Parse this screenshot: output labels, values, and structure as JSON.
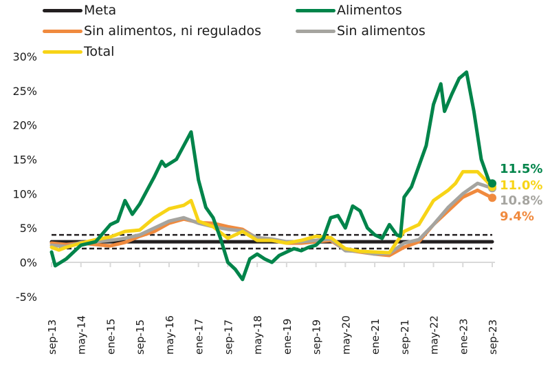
{
  "chart_data": {
    "type": "line",
    "title": "",
    "xlabel": "",
    "ylabel": "",
    "ylim": [
      -5,
      30
    ],
    "yticks": [
      "-5%",
      "0%",
      "5%",
      "10%",
      "15%",
      "20%",
      "25%",
      "30%"
    ],
    "ytick_values": [
      -5,
      0,
      5,
      10,
      15,
      20,
      25,
      30
    ],
    "xticks": [
      "sep-13",
      "may-14",
      "ene-15",
      "sep-15",
      "may-16",
      "ene-17",
      "sep-17",
      "may-18",
      "ene-19",
      "sep-19",
      "may-20",
      "ene-21",
      "sep-21",
      "may-22",
      "ene-23",
      "sep-23"
    ],
    "xtick_months": [
      0,
      8,
      16,
      24,
      32,
      40,
      48,
      56,
      64,
      72,
      80,
      88,
      96,
      104,
      112,
      120
    ],
    "x_unit": "months since sep-13",
    "meta": {
      "target": 3,
      "band_low": 2,
      "band_high": 4
    },
    "legend": [
      {
        "name": "Meta",
        "color": "#231f20"
      },
      {
        "name": "Alimentos",
        "color": "#00844a"
      },
      {
        "name": "Sin alimentos, ni regulados",
        "color": "#f08a3e"
      },
      {
        "name": "Sin alimentos",
        "color": "#a5a49f"
      },
      {
        "name": "Total",
        "color": "#f7d417"
      }
    ],
    "series": [
      {
        "name": "Alimentos",
        "color": "#00844a",
        "x": [
          0,
          1,
          4,
          8,
          12,
          16,
          18,
          20,
          22,
          24,
          26,
          28,
          30,
          31,
          34,
          36,
          38,
          40,
          42,
          44,
          46,
          48,
          50,
          52,
          54,
          56,
          58,
          60,
          62,
          64,
          66,
          68,
          70,
          72,
          74,
          76,
          78,
          80,
          82,
          84,
          86,
          88,
          90,
          92,
          94,
          95,
          96,
          98,
          100,
          102,
          104,
          106,
          107,
          109,
          111,
          113,
          115,
          117,
          119,
          120
        ],
        "y": [
          1.5,
          -0.5,
          0.5,
          2.5,
          3,
          5.5,
          6,
          9,
          7,
          8.5,
          10.5,
          12.5,
          14.7,
          14,
          15,
          17,
          19,
          12,
          8,
          6.5,
          3.5,
          0,
          -1,
          -2.5,
          0.5,
          1.2,
          0.5,
          0,
          1,
          1.5,
          2,
          1.7,
          2.2,
          2.5,
          3.5,
          6.5,
          6.8,
          5,
          8.2,
          7.5,
          5,
          4,
          3.5,
          5.5,
          4,
          3.8,
          9.5,
          11,
          14,
          17,
          23,
          26,
          22,
          24.5,
          26.8,
          27.7,
          22,
          15,
          12,
          11.5
        ]
      },
      {
        "name": "Sin alimentos, ni regulados",
        "color": "#f08a3e",
        "x": [
          0,
          4,
          8,
          12,
          16,
          20,
          24,
          28,
          32,
          36,
          40,
          44,
          48,
          52,
          56,
          60,
          64,
          68,
          72,
          76,
          80,
          84,
          88,
          92,
          96,
          100,
          104,
          108,
          112,
          116,
          120
        ],
        "y": [
          2.8,
          2.6,
          2.8,
          2.6,
          2.4,
          2.9,
          3.8,
          4.5,
          5.7,
          6.3,
          5.8,
          5.7,
          5.2,
          4.8,
          3.5,
          3.2,
          2.8,
          2.8,
          3.0,
          3.2,
          1.8,
          1.5,
          1.2,
          1.0,
          2.2,
          3.0,
          5.5,
          7.5,
          9.5,
          10.5,
          9.4
        ]
      },
      {
        "name": "Sin alimentos",
        "color": "#a5a49f",
        "x": [
          0,
          4,
          8,
          12,
          16,
          20,
          24,
          28,
          32,
          36,
          40,
          44,
          48,
          52,
          56,
          60,
          64,
          68,
          72,
          76,
          80,
          84,
          88,
          92,
          96,
          100,
          104,
          108,
          112,
          116,
          120
        ],
        "y": [
          2.5,
          2.3,
          2.9,
          3.0,
          3.2,
          3.5,
          4.0,
          5.0,
          6.0,
          6.5,
          5.7,
          5.2,
          4.8,
          4.6,
          3.6,
          3.4,
          3.0,
          3.0,
          3.2,
          3.4,
          1.7,
          1.6,
          1.2,
          1.3,
          2.8,
          3.3,
          5.5,
          8.0,
          10.0,
          11.5,
          10.8
        ]
      },
      {
        "name": "Total",
        "color": "#f7d417",
        "x": [
          0,
          2,
          4,
          8,
          12,
          16,
          20,
          24,
          28,
          32,
          36,
          38,
          40,
          44,
          48,
          52,
          56,
          60,
          64,
          68,
          72,
          76,
          80,
          84,
          88,
          92,
          96,
          100,
          104,
          108,
          110,
          112,
          116,
          120
        ],
        "y": [
          2.2,
          1.8,
          2.2,
          2.8,
          3.3,
          3.7,
          4.5,
          4.7,
          6.5,
          7.8,
          8.3,
          9.0,
          6.0,
          5.2,
          3.5,
          4.5,
          3.2,
          3.2,
          2.8,
          3.2,
          3.8,
          3.6,
          2.0,
          1.6,
          1.5,
          1.4,
          4.5,
          5.5,
          9.0,
          10.5,
          11.5,
          13.2,
          13.2,
          11.0
        ]
      }
    ],
    "end_labels": [
      {
        "series": "Alimentos",
        "text": "11.5%",
        "color": "#00844a"
      },
      {
        "series": "Total",
        "text": "11.0%",
        "color": "#f7d417"
      },
      {
        "series": "Sin alimentos",
        "text": "10.8%",
        "color": "#a5a49f"
      },
      {
        "series": "Sin alimentos, ni regulados",
        "text": "9.4%",
        "color": "#f08a3e"
      }
    ]
  }
}
